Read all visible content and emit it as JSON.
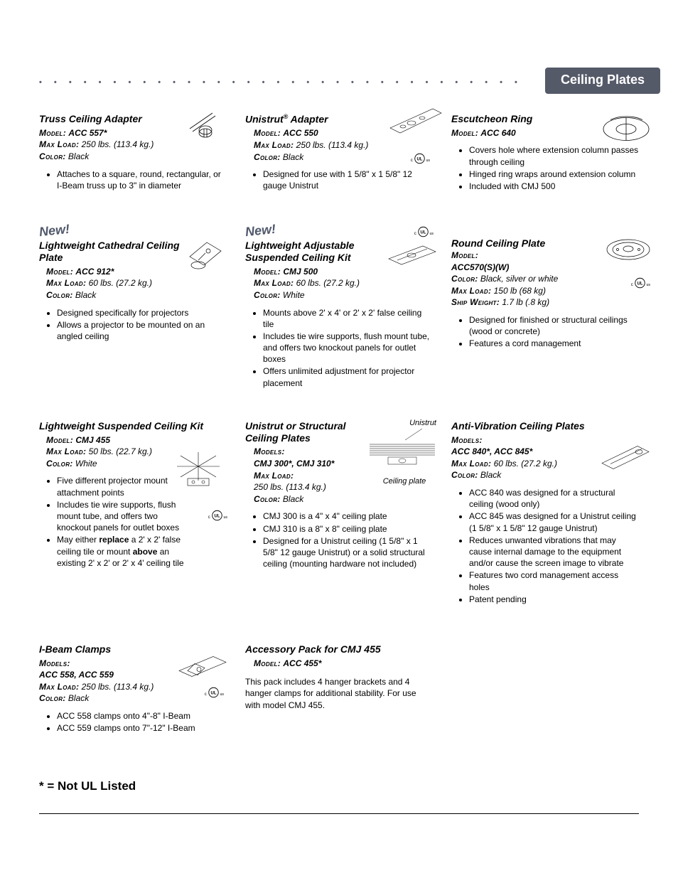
{
  "header": {
    "dot_char": "•",
    "title": "Ceiling Plates",
    "badge_bg": "#555a69",
    "badge_fg": "#ffffff"
  },
  "badges": {
    "new": "New!"
  },
  "labels": {
    "model": "Model:",
    "models": "Models:",
    "max_load": "Max Load:",
    "color": "Color:",
    "ship_weight": "Ship Weight:"
  },
  "footnote": "* = Not UL Listed",
  "products": {
    "truss": {
      "title": "Truss Ceiling Adapter",
      "model": "ACC 557*",
      "max_load": "250 lbs. (113.4 kg.)",
      "color": "Black",
      "bullets": [
        "Attaches to a square, round, rectangular, or I-Beam truss up to 3\" in diameter"
      ]
    },
    "unistrut_adapter": {
      "title_pre": "Unistrut",
      "title_post": " Adapter",
      "reg": "®",
      "model": "ACC 550",
      "max_load": "250 lbs. (113.4 kg.)",
      "color": "Black",
      "bullets": [
        "Designed for use with 1 5/8\" x 1 5/8\" 12 gauge Unistrut"
      ]
    },
    "escutcheon": {
      "title": "Escutcheon Ring",
      "model": "ACC 640",
      "bullets": [
        "Covers hole where extension column passes through ceiling",
        "Hinged ring wraps around extension column",
        "Included with CMJ 500"
      ]
    },
    "cathedral": {
      "title": "Lightweight Cathedral Ceiling Plate",
      "model": "ACC 912*",
      "max_load": "60 lbs. (27.2 kg.)",
      "color": "Black",
      "bullets": [
        "Designed specifically for projectors",
        "Allows a projector to be mounted on an angled ceiling"
      ]
    },
    "adjustable": {
      "title": "Lightweight Adjustable Suspended Ceiling Kit",
      "model": "CMJ 500",
      "max_load": "60 lbs. (27.2 kg.)",
      "color": "White",
      "bullets": [
        "Mounts above 2' x 4' or 2' x 2' false ceiling tile",
        "Includes tie wire supports, flush mount tube, and offers two knockout panels for outlet boxes",
        "Offers unlimited adjustment for projector placement"
      ]
    },
    "round": {
      "title": "Round Ceiling Plate",
      "model": "ACC570(S)(W)",
      "color": "Black, silver or white",
      "max_load": "150 lb (68 kg)",
      "ship_weight": "1.7 lb (.8 kg)",
      "bullets": [
        "Designed for finished or structural ceilings (wood or concrete)",
        "Features a cord management"
      ]
    },
    "suspended_kit": {
      "title": "Lightweight Suspended Ceiling Kit",
      "model": "CMJ 455",
      "max_load": "50 lbs. (22.7 kg.)",
      "color": "White",
      "bullets_html": [
        "Five different projector mount attachment points",
        "Includes tie wire supports, flush mount tube, and offers two knockout panels for outlet boxes",
        "May either <b>replace</b> a 2' x 2' false ceiling tile or mount <b>above</b> an existing 2' x 2' or 2' x 4' ceiling tile"
      ]
    },
    "structural": {
      "title": "Unistrut or Structural Ceiling Plates",
      "models": "CMJ 300*, CMJ 310*",
      "max_load": "250 lbs. (113.4 kg.)",
      "color": "Black",
      "callout_unistrut": "Unistrut",
      "callout_plate": "Ceiling plate",
      "bullets": [
        "CMJ 300 is a 4\" x 4\" ceiling plate",
        "CMJ 310 is a 8\" x 8\" ceiling plate",
        "Designed for a Unistrut ceiling (1 5/8\" x 1 5/8\" 12 gauge Unistrut) or a solid structural ceiling (mounting hardware not included)"
      ]
    },
    "antivib": {
      "title": "Anti-Vibration Ceiling Plates",
      "models": "ACC 840*, ACC 845*",
      "max_load": "60 lbs. (27.2 kg.)",
      "color": "Black",
      "bullets": [
        "ACC 840 was designed for a structural ceiling (wood only)",
        "ACC 845 was designed for a Unistrut ceiling (1 5/8\" x 1 5/8\" 12 gauge Unistrut)",
        "Reduces unwanted vibrations that may cause internal damage to the equipment and/or cause the screen image to vibrate",
        "Features two cord management access holes",
        "Patent pending"
      ]
    },
    "ibeam": {
      "title": "I-Beam Clamps",
      "models": "ACC 558, ACC 559",
      "max_load": "250 lbs. (113.4 kg.)",
      "color": "Black",
      "bullets": [
        "ACC 558 clamps onto 4\"-8\" I-Beam",
        "ACC 559 clamps onto 7\"-12\" I-Beam"
      ]
    },
    "acc_pack": {
      "title": "Accessory Pack for CMJ 455",
      "model": "ACC 455*",
      "desc": "This pack includes 4 hanger brackets and 4 hanger clamps for additional stability.  For use with model CMJ 455."
    }
  }
}
